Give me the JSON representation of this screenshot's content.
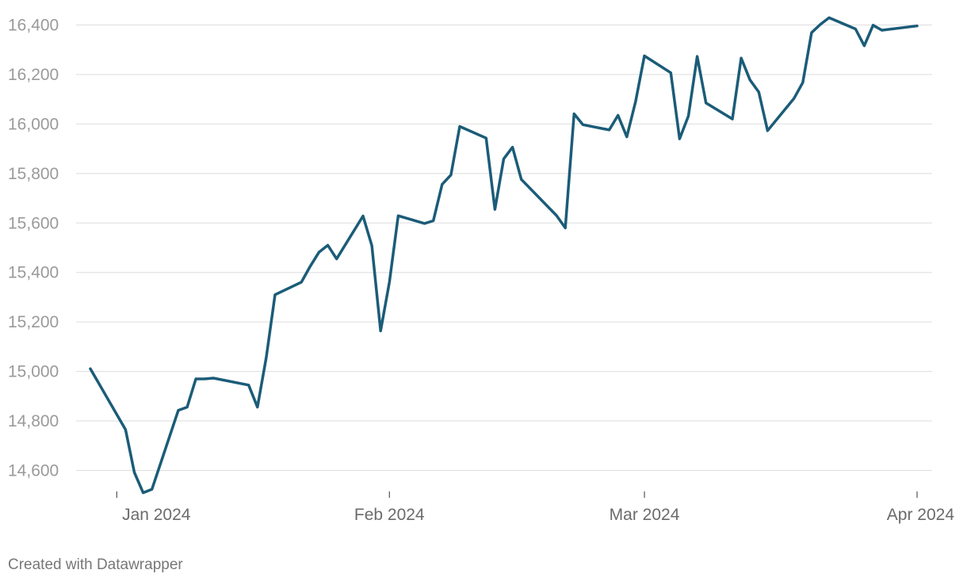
{
  "chart_data": {
    "type": "line",
    "title": "",
    "xlabel": "",
    "ylabel": "",
    "ylim": [
      14500,
      16450
    ],
    "xlim": [
      "2023-12-29",
      "2024-04-01"
    ],
    "y_ticks": [
      14600,
      14800,
      15000,
      15200,
      15400,
      15600,
      15800,
      16000,
      16200,
      16400
    ],
    "y_tick_labels": [
      "14,600",
      "14,800",
      "15,000",
      "15,200",
      "15,400",
      "15,600",
      "15,800",
      "16,000",
      "16,200",
      "16,400"
    ],
    "x_ticks": [
      "2024-01-01",
      "2024-02-01",
      "2024-03-01",
      "2024-04-01"
    ],
    "x_tick_labels": [
      "Jan 2024",
      "Feb 2024",
      "Mar 2024",
      "Apr 2024"
    ],
    "grid": true,
    "legend": "none",
    "color": "#1b5c78",
    "series": [
      {
        "x": [
          "2023-12-29",
          "2024-01-02",
          "2024-01-03",
          "2024-01-04",
          "2024-01-05",
          "2024-01-08",
          "2024-01-09",
          "2024-01-10",
          "2024-01-11",
          "2024-01-12",
          "2024-01-16",
          "2024-01-17",
          "2024-01-18",
          "2024-01-19",
          "2024-01-22",
          "2024-01-23",
          "2024-01-24",
          "2024-01-25",
          "2024-01-26",
          "2024-01-29",
          "2024-01-30",
          "2024-01-31",
          "2024-02-01",
          "2024-02-02",
          "2024-02-05",
          "2024-02-06",
          "2024-02-07",
          "2024-02-08",
          "2024-02-09",
          "2024-02-12",
          "2024-02-13",
          "2024-02-14",
          "2024-02-15",
          "2024-02-16",
          "2024-02-20",
          "2024-02-21",
          "2024-02-22",
          "2024-02-23",
          "2024-02-26",
          "2024-02-27",
          "2024-02-28",
          "2024-02-29",
          "2024-03-01",
          "2024-03-04",
          "2024-03-05",
          "2024-03-06",
          "2024-03-07",
          "2024-03-08",
          "2024-03-11",
          "2024-03-12",
          "2024-03-13",
          "2024-03-14",
          "2024-03-15",
          "2024-03-18",
          "2024-03-19",
          "2024-03-20",
          "2024-03-21",
          "2024-03-22",
          "2024-03-25",
          "2024-03-26",
          "2024-03-27",
          "2024-03-28",
          "2024-04-01"
        ],
        "y": [
          15011,
          14765,
          14592,
          14510,
          14524,
          14843,
          14856,
          14970,
          14970,
          14973,
          14945,
          14856,
          15056,
          15310,
          15361,
          15425,
          15482,
          15510,
          15455,
          15628,
          15509,
          15164,
          15361,
          15629,
          15598,
          15609,
          15756,
          15794,
          15990,
          15943,
          15655,
          15859,
          15906,
          15776,
          15630,
          15580,
          16041,
          15997,
          15976,
          16035,
          15948,
          16091,
          16275,
          16207,
          15940,
          16032,
          16273,
          16085,
          16020,
          16266,
          16178,
          16129,
          15973,
          16103,
          16167,
          16369,
          16402,
          16429,
          16384,
          16316,
          16399,
          16379,
          16396
        ]
      }
    ]
  },
  "footer": {
    "credit": "Created with Datawrapper"
  }
}
